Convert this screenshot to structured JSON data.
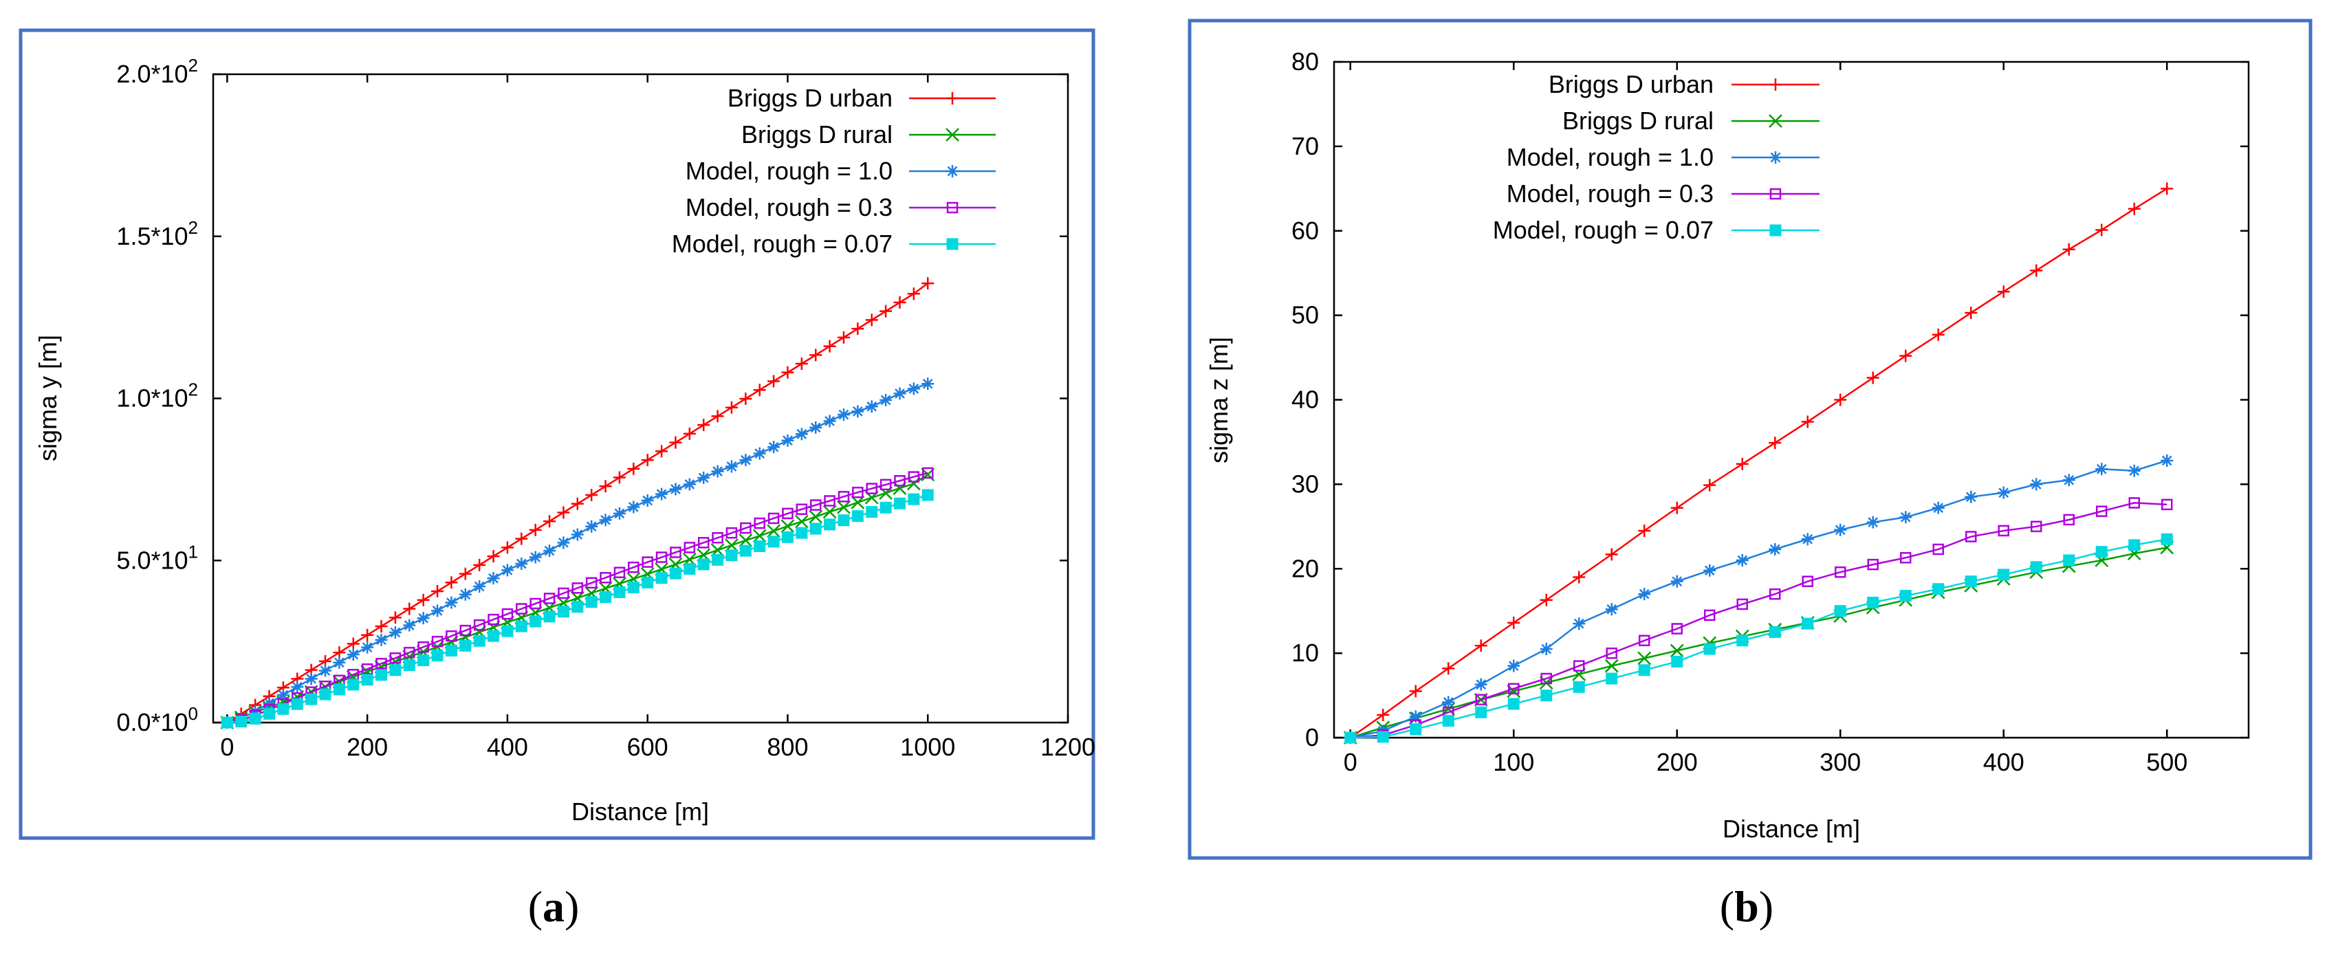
{
  "colors": {
    "frame": "#4472C4",
    "series": [
      "#FF0000",
      "#00A000",
      "#1E7FE0",
      "#B000E0",
      "#00D8E0"
    ]
  },
  "chart_data": [
    {
      "type": "line",
      "panel": "a",
      "caption": {
        "open": "(",
        "letter": "a",
        "close": ")"
      },
      "title": "",
      "xlabel": "Distance [m]",
      "ylabel": "sigma y [m]",
      "xlim": [
        -20,
        1200
      ],
      "ylim": [
        0,
        200
      ],
      "xticks": [
        0,
        200,
        400,
        600,
        800,
        1000,
        1200
      ],
      "xtick_labels": [
        "0",
        "200",
        "400",
        "600",
        "800",
        "1000",
        "1200"
      ],
      "yticks": [
        0,
        50,
        100,
        150,
        200
      ],
      "ytick_labels": [
        {
          "mant": "0.0*10",
          "exp": "0"
        },
        {
          "mant": "5.0*10",
          "exp": "1"
        },
        {
          "mant": "1.0*10",
          "exp": "2"
        },
        {
          "mant": "1.5*10",
          "exp": "2"
        },
        {
          "mant": "2.0*10",
          "exp": "2"
        }
      ],
      "legend_position": "top-right",
      "x": [
        0,
        20,
        40,
        60,
        80,
        100,
        120,
        140,
        160,
        180,
        200,
        220,
        240,
        260,
        280,
        300,
        320,
        340,
        360,
        380,
        400,
        420,
        440,
        460,
        480,
        500,
        520,
        540,
        560,
        580,
        600,
        620,
        640,
        660,
        680,
        700,
        720,
        740,
        760,
        780,
        800,
        820,
        840,
        860,
        880,
        900,
        920,
        940,
        960,
        980,
        1000
      ],
      "series": [
        {
          "name": "Briggs D urban",
          "marker": "plus",
          "values": [
            0,
            2.7,
            5.4,
            8.1,
            10.8,
            13.5,
            16.2,
            18.9,
            21.6,
            24.3,
            27.0,
            29.7,
            32.4,
            35.1,
            37.8,
            40.5,
            43.2,
            45.9,
            48.6,
            51.3,
            54.0,
            56.7,
            59.4,
            62.1,
            64.8,
            67.5,
            70.2,
            72.9,
            75.6,
            78.3,
            81.0,
            83.7,
            86.4,
            89.1,
            91.8,
            94.5,
            97.2,
            99.9,
            102.6,
            105.3,
            108.0,
            110.7,
            113.4,
            116.1,
            118.8,
            121.5,
            124.2,
            126.9,
            129.6,
            132.3,
            135.5
          ]
        },
        {
          "name": "Briggs D rural",
          "marker": "x",
          "values": [
            0,
            1.6,
            3.2,
            4.8,
            6.3,
            7.9,
            9.5,
            11.0,
            12.6,
            14.1,
            15.7,
            17.2,
            18.8,
            20.3,
            21.8,
            23.3,
            24.8,
            26.3,
            27.9,
            29.4,
            30.9,
            32.4,
            33.9,
            35.4,
            36.9,
            38.4,
            39.9,
            41.4,
            42.8,
            44.3,
            45.8,
            47.3,
            48.8,
            50.3,
            51.7,
            53.2,
            54.7,
            56.2,
            57.6,
            59.1,
            60.6,
            62.0,
            63.5,
            65.0,
            66.4,
            67.9,
            69.4,
            70.8,
            72.3,
            73.7,
            76.5
          ]
        },
        {
          "name": "Model, rough = 1.0",
          "marker": "star",
          "values": [
            0,
            1.2,
            3.5,
            6.0,
            8.5,
            11.0,
            13.5,
            16.0,
            18.5,
            21.0,
            23.2,
            25.5,
            27.8,
            30.0,
            32.2,
            34.5,
            37.0,
            39.5,
            42.0,
            44.5,
            47.0,
            49.0,
            51.0,
            53.0,
            55.5,
            58.0,
            60.5,
            62.5,
            64.5,
            66.5,
            68.5,
            70.5,
            72.0,
            73.5,
            75.5,
            77.5,
            79.0,
            81.0,
            83.0,
            85.0,
            87.0,
            89.0,
            91.0,
            93.0,
            95.0,
            96.0,
            97.5,
            99.5,
            101.5,
            103.0,
            104.5
          ]
        },
        {
          "name": "Model, rough = 0.3",
          "marker": "square-open",
          "values": [
            0,
            0.8,
            2.2,
            4.0,
            5.8,
            7.6,
            9.4,
            11.2,
            13.0,
            14.8,
            16.5,
            18.2,
            19.9,
            21.6,
            23.3,
            25.0,
            26.7,
            28.4,
            30.1,
            31.8,
            33.5,
            35.1,
            36.7,
            38.3,
            39.9,
            41.5,
            43.1,
            44.7,
            46.3,
            47.9,
            49.5,
            51.0,
            52.5,
            54.0,
            55.5,
            57.0,
            58.5,
            60.0,
            61.5,
            63.0,
            64.5,
            65.8,
            67.1,
            68.4,
            69.7,
            71.0,
            72.2,
            73.4,
            74.6,
            75.8,
            77.0
          ]
        },
        {
          "name": "Model, rough = 0.07",
          "marker": "square-filled",
          "values": [
            0,
            0.3,
            1.2,
            2.7,
            4.2,
            5.7,
            7.2,
            8.7,
            10.2,
            11.7,
            13.2,
            14.7,
            16.2,
            17.7,
            19.2,
            20.7,
            22.2,
            23.7,
            25.2,
            26.7,
            28.2,
            29.7,
            31.2,
            32.7,
            34.2,
            35.7,
            37.2,
            38.7,
            40.2,
            41.7,
            43.2,
            44.6,
            46.0,
            47.4,
            48.8,
            50.2,
            51.6,
            53.0,
            54.4,
            55.8,
            57.2,
            58.5,
            59.8,
            61.1,
            62.4,
            63.7,
            65.0,
            66.3,
            67.6,
            68.9,
            70.2
          ]
        }
      ]
    },
    {
      "type": "line",
      "panel": "b",
      "caption": {
        "open": "(",
        "letter": "b",
        "close": ")"
      },
      "title": "",
      "xlabel": "Distance [m]",
      "ylabel": "sigma z [m]",
      "xlim": [
        -10,
        550
      ],
      "ylim": [
        0,
        80
      ],
      "xticks": [
        0,
        100,
        200,
        300,
        400,
        500
      ],
      "xtick_labels": [
        "0",
        "100",
        "200",
        "300",
        "400",
        "500"
      ],
      "yticks": [
        0,
        10,
        20,
        30,
        40,
        50,
        60,
        70,
        80
      ],
      "ytick_labels": [
        "0",
        "10",
        "20",
        "30",
        "40",
        "50",
        "60",
        "70",
        "80"
      ],
      "legend_position": "top-left",
      "x": [
        0,
        20,
        40,
        60,
        80,
        100,
        120,
        140,
        160,
        180,
        200,
        220,
        240,
        260,
        280,
        300,
        320,
        340,
        360,
        380,
        400,
        420,
        440,
        460,
        480,
        500
      ],
      "series": [
        {
          "name": "Briggs D urban",
          "marker": "plus",
          "values": [
            0,
            2.7,
            5.5,
            8.2,
            10.9,
            13.6,
            16.3,
            19.0,
            21.7,
            24.5,
            27.2,
            29.9,
            32.4,
            34.9,
            37.4,
            40.0,
            42.6,
            45.2,
            47.7,
            50.3,
            52.8,
            55.3,
            57.8,
            60.1,
            62.6,
            65.0
          ]
        },
        {
          "name": "Briggs D rural",
          "marker": "x",
          "values": [
            0,
            1.2,
            2.3,
            3.4,
            4.5,
            5.5,
            6.5,
            7.5,
            8.5,
            9.4,
            10.3,
            11.2,
            12.0,
            12.8,
            13.6,
            14.4,
            15.4,
            16.3,
            17.2,
            18.0,
            18.8,
            19.6,
            20.3,
            21.0,
            21.8,
            22.5
          ]
        },
        {
          "name": "Model, rough = 1.0",
          "marker": "star",
          "values": [
            0,
            0.8,
            2.5,
            4.2,
            6.3,
            8.5,
            10.5,
            13.5,
            15.2,
            17.0,
            18.5,
            19.8,
            21.0,
            22.3,
            23.5,
            24.6,
            25.5,
            26.1,
            27.2,
            28.5,
            29.0,
            30.0,
            30.5,
            31.8,
            31.6,
            32.8
          ]
        },
        {
          "name": "Model, rough = 0.3",
          "marker": "square-open",
          "values": [
            0,
            0.3,
            1.5,
            3.0,
            4.5,
            5.8,
            7.0,
            8.5,
            10.0,
            11.5,
            12.9,
            14.5,
            15.8,
            17.0,
            18.5,
            19.6,
            20.5,
            21.3,
            22.3,
            23.8,
            24.5,
            25.0,
            25.8,
            26.8,
            27.8,
            27.6
          ]
        },
        {
          "name": "Model, rough = 0.07",
          "marker": "square-filled",
          "values": [
            0,
            0.1,
            1.0,
            2.0,
            3.0,
            4.0,
            5.0,
            6.0,
            7.0,
            8.0,
            9.0,
            10.5,
            11.5,
            12.5,
            13.5,
            15.0,
            16.0,
            16.8,
            17.6,
            18.5,
            19.3,
            20.2,
            21.0,
            22.0,
            22.8,
            23.5
          ]
        }
      ]
    }
  ]
}
